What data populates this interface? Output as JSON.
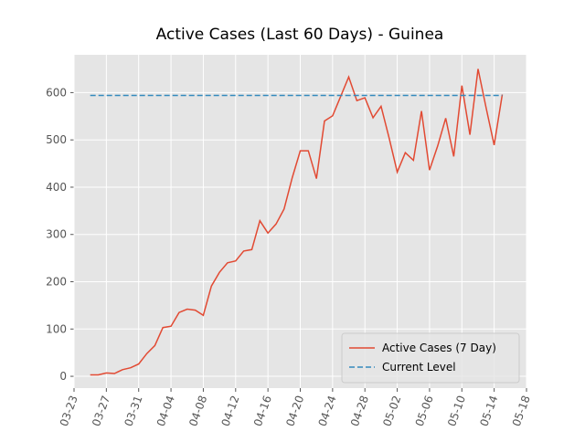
{
  "chart_data": {
    "type": "line",
    "title": "Active Cases (Last 60 Days) - Guinea",
    "x": [
      "03-25",
      "03-26",
      "03-27",
      "03-28",
      "03-29",
      "03-30",
      "03-31",
      "04-01",
      "04-02",
      "04-03",
      "04-04",
      "04-05",
      "04-06",
      "04-07",
      "04-08",
      "04-09",
      "04-10",
      "04-11",
      "04-12",
      "04-13",
      "04-14",
      "04-15",
      "04-16",
      "04-17",
      "04-18",
      "04-19",
      "04-20",
      "04-21",
      "04-22",
      "04-23",
      "04-24",
      "04-25",
      "04-26",
      "04-27",
      "04-28",
      "04-29",
      "04-30",
      "05-01",
      "05-02",
      "05-03",
      "05-04",
      "05-05",
      "05-06",
      "05-07",
      "05-08",
      "05-09",
      "05-10",
      "05-11",
      "05-12",
      "05-13",
      "05-14",
      "05-15"
    ],
    "series": [
      {
        "name": "Active Cases (7 Day)",
        "color": "#e24a33",
        "values": [
          3,
          3,
          7,
          6,
          14,
          18,
          26,
          48,
          65,
          103,
          106,
          135,
          142,
          140,
          129,
          191,
          220,
          240,
          244,
          265,
          268,
          329,
          303,
          322,
          354,
          420,
          477,
          477,
          418,
          540,
          551,
          592,
          633,
          583,
          589,
          547,
          571,
          504,
          432,
          473,
          457,
          561,
          436,
          487,
          546,
          465,
          615,
          511,
          650,
          568,
          489,
          596
        ]
      }
    ],
    "hline": {
      "name": "Current Level",
      "color": "#348abd",
      "value": 594
    },
    "xlim": [
      "03-23",
      "05-18"
    ],
    "xticks": [
      "03-23",
      "03-27",
      "03-31",
      "04-04",
      "04-08",
      "04-12",
      "04-16",
      "04-20",
      "04-24",
      "04-28",
      "05-02",
      "05-06",
      "05-10",
      "05-14",
      "05-18"
    ],
    "ylim": [
      -25,
      680
    ],
    "yticks": [
      0,
      100,
      200,
      300,
      400,
      500,
      600
    ],
    "grid": true,
    "legend": "lower right"
  }
}
